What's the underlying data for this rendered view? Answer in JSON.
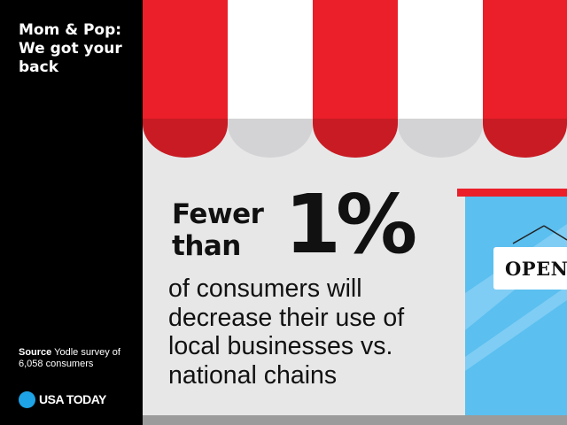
{
  "sidebar": {
    "title": "Mom & Pop: We got your back",
    "source_label": "Source",
    "source_text": " Yodle survey of 6,058 consumers",
    "brand": "USA TODAY"
  },
  "main": {
    "headline": "Fewer than",
    "stat": "1%",
    "body": "of consumers will decrease their use of local businesses vs. national chains",
    "sign": "OPEN"
  },
  "colors": {
    "awning_red": "#ea1f29",
    "awning_white": "#ffffff",
    "window_blue": "#5bbff0",
    "brand_blue": "#1ea3e6",
    "background": "#e7e7e8"
  },
  "icons": [
    "awning-illustration",
    "storefront-window-illustration",
    "usatoday-dot-icon"
  ]
}
